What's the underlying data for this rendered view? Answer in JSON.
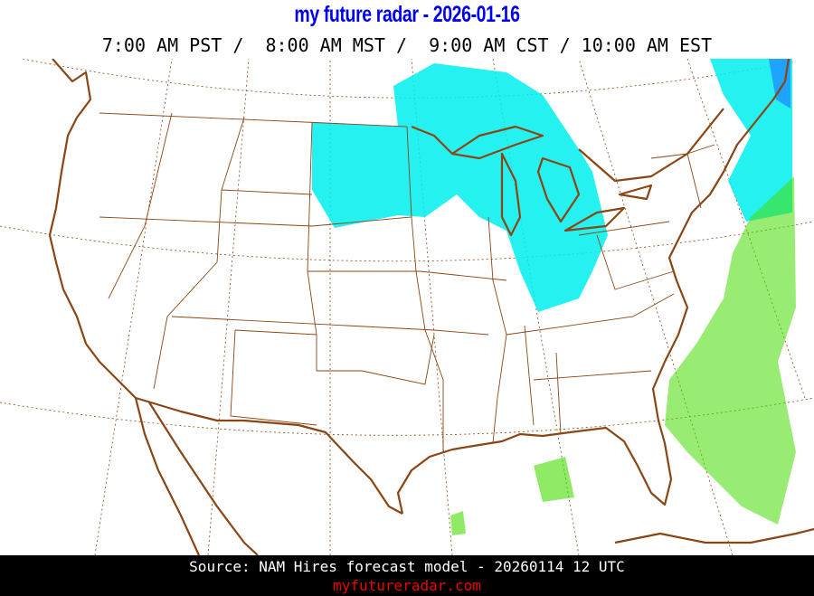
{
  "header": {
    "title": "my future radar - 2026-01-16",
    "times": "7:00 AM PST /  8:00 AM MST /  9:00 AM CST / 10:00 AM EST"
  },
  "map": {
    "region": "Continental United States",
    "colors": {
      "border": "#8b4513",
      "graticule": "#8b4513",
      "snow": "#00e5ee",
      "snow_heavy": "#1e90ff",
      "rain": "#33dd00",
      "background": "#ffffff"
    }
  },
  "footer": {
    "source": "Source: NAM Hires forecast model - 20260114 12 UTC",
    "site": "myfutureradar.com"
  }
}
